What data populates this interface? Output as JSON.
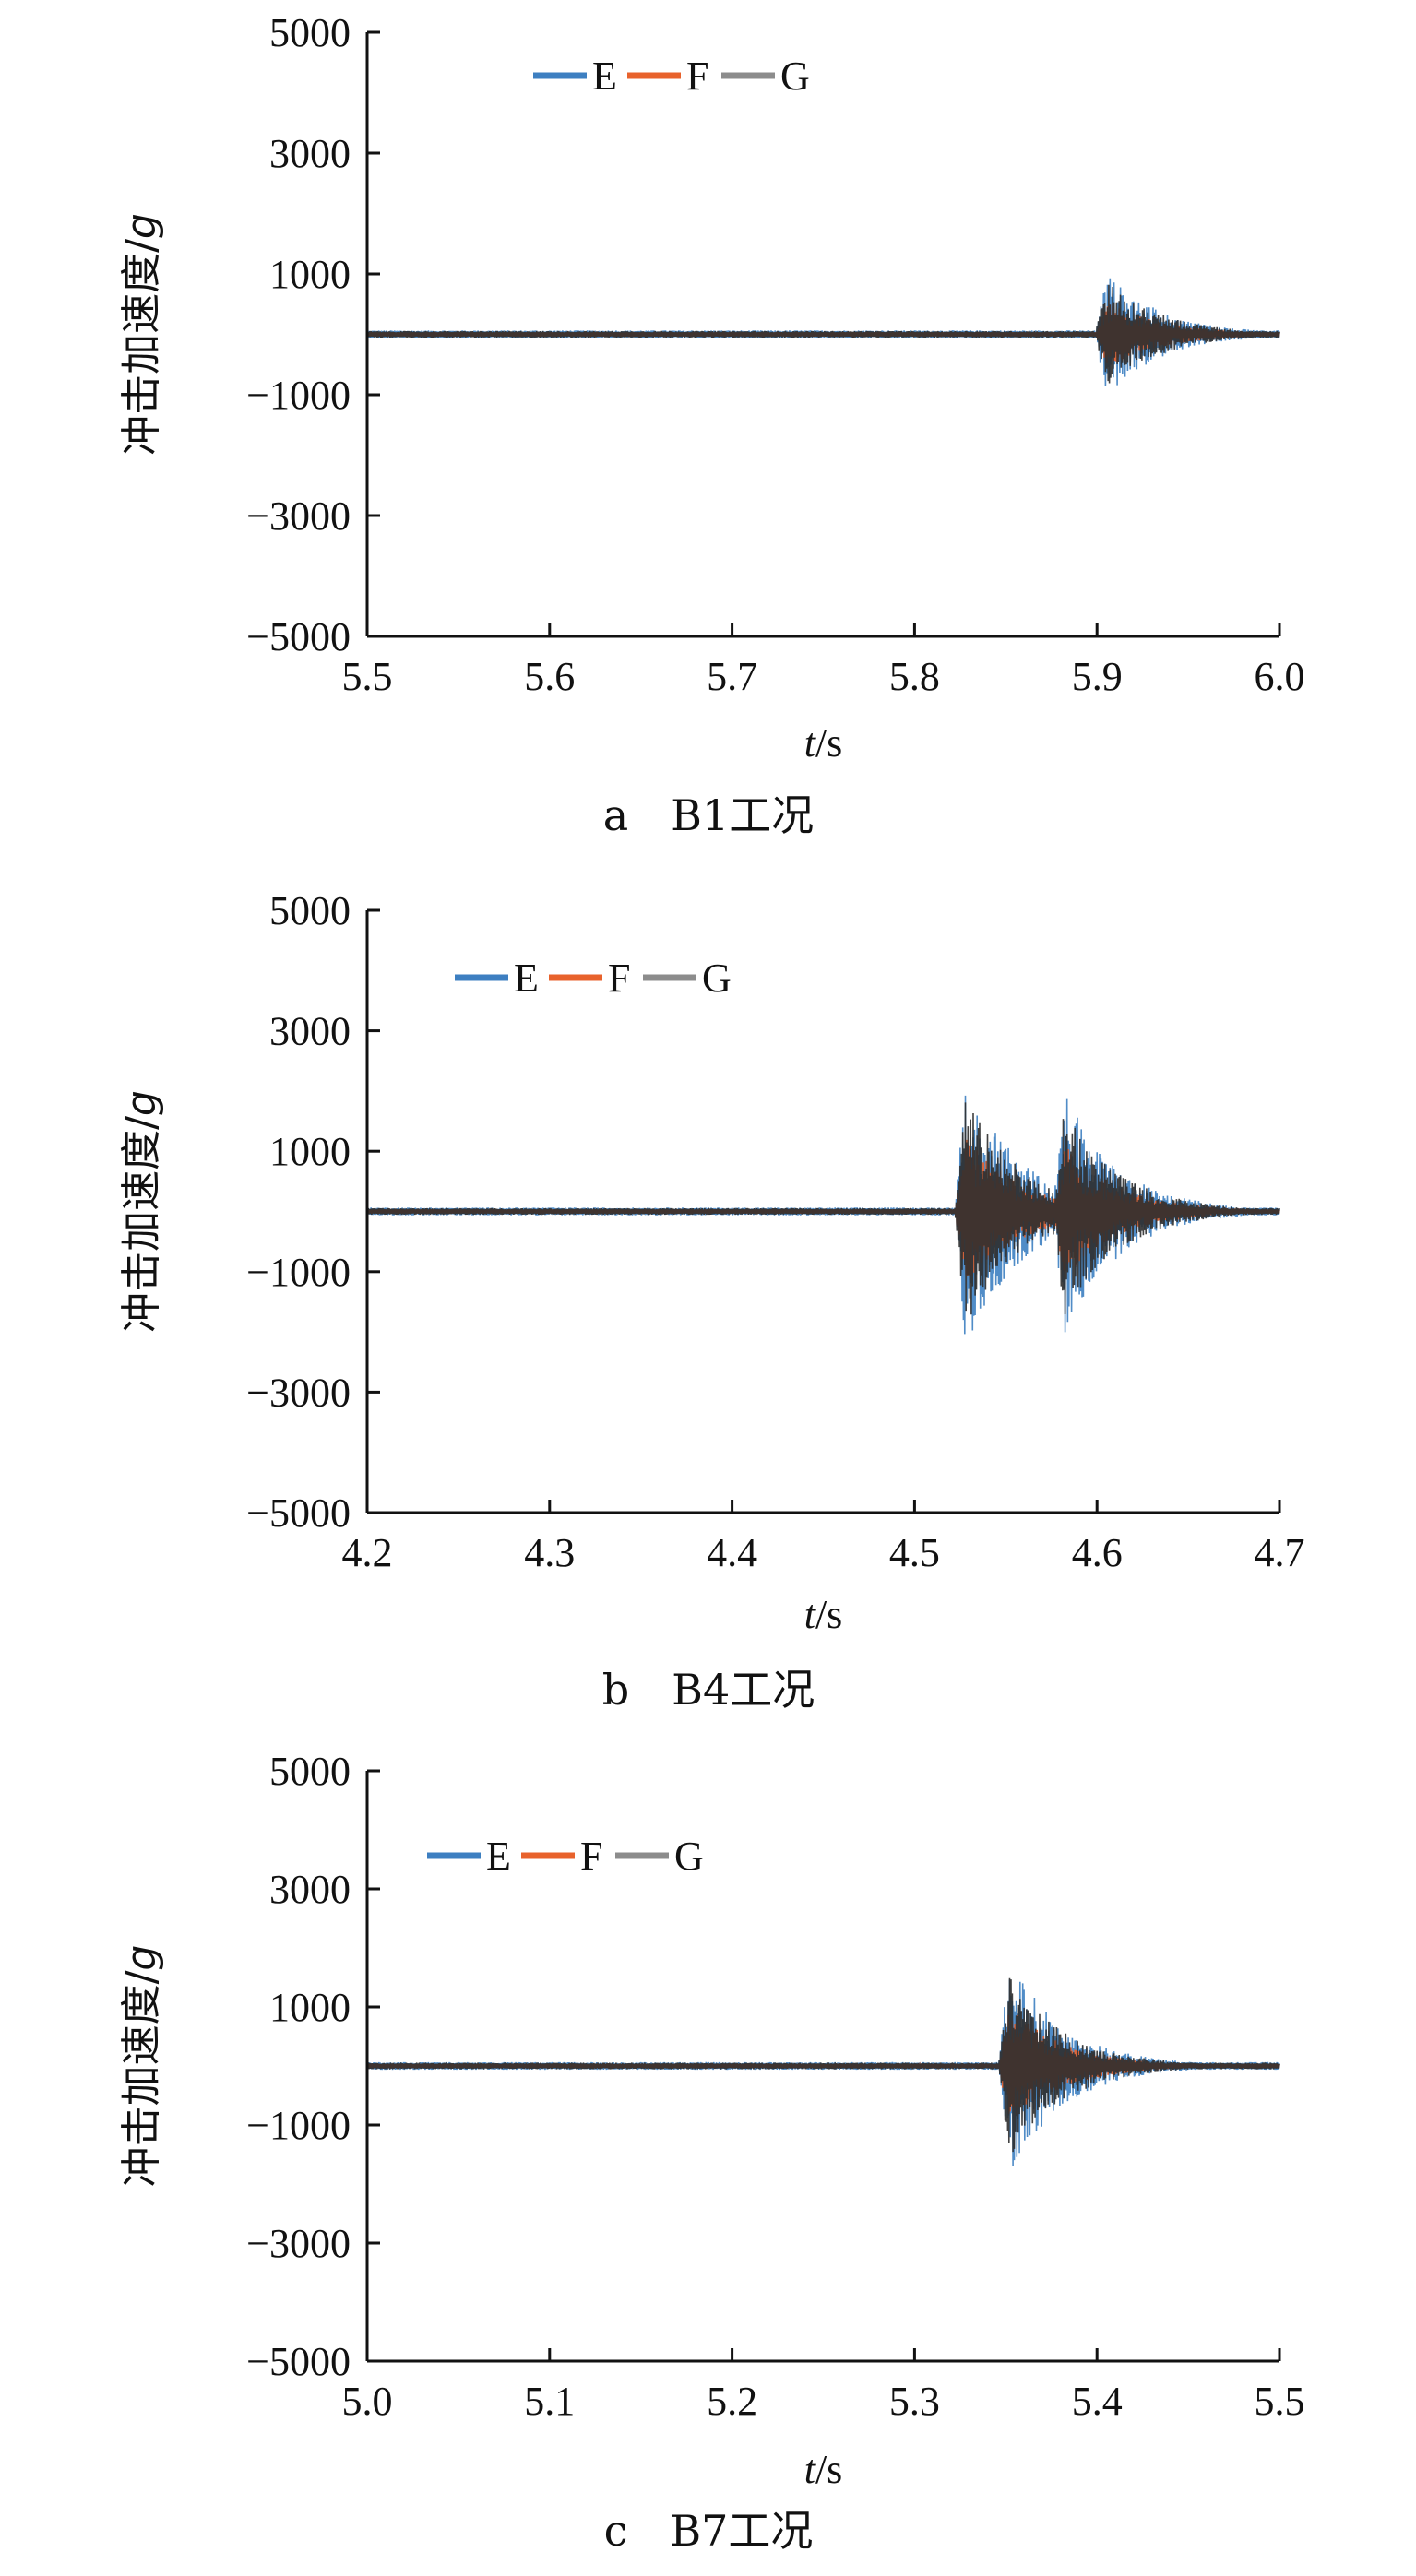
{
  "chart_data": [
    {
      "type": "line",
      "caption": "a　B1工况",
      "xlabel_italic": "t",
      "xlabel_unit": "/s",
      "ylabel_text": "冲击加速度/",
      "ylabel_italic": "g",
      "xlim": [
        5.5,
        6.0
      ],
      "ylim": [
        -5000,
        5000
      ],
      "x_ticks": [
        "5.5",
        "5.6",
        "5.7",
        "5.8",
        "5.9",
        "6.0"
      ],
      "y_ticks": [
        "5000",
        "3000",
        "1000",
        "−1000",
        "−3000",
        "−5000"
      ],
      "grid": false,
      "legend_position": "top-left",
      "series": [
        {
          "name": "E",
          "color": "#3d7fc1"
        },
        {
          "name": "F",
          "color": "#e8622c"
        },
        {
          "name": "G",
          "color": "#8c8c8c"
        }
      ],
      "signal": {
        "baseline": 0,
        "burst_start": 5.895,
        "end": 6.0,
        "peaks": [
          {
            "x": 5.905,
            "max": 1100,
            "min": -1000
          }
        ]
      }
    },
    {
      "type": "line",
      "caption": "b　B4工况",
      "xlabel_italic": "t",
      "xlabel_unit": "/s",
      "ylabel_text": "冲击加速度/",
      "ylabel_italic": "g",
      "xlim": [
        4.2,
        4.7
      ],
      "ylim": [
        -5000,
        5000
      ],
      "x_ticks": [
        "4.2",
        "4.3",
        "4.4",
        "4.5",
        "4.6",
        "4.7"
      ],
      "y_ticks": [
        "5000",
        "3000",
        "1000",
        "−1000",
        "−3000",
        "−5000"
      ],
      "grid": false,
      "legend_position": "top-left",
      "series": [
        {
          "name": "E",
          "color": "#3d7fc1"
        },
        {
          "name": "F",
          "color": "#e8622c"
        },
        {
          "name": "G",
          "color": "#8c8c8c"
        }
      ],
      "signal": {
        "baseline": 0,
        "burst_start": 4.522,
        "end": 4.7,
        "peaks": [
          {
            "x": 4.528,
            "max": 2400,
            "min": -2200
          },
          {
            "x": 4.582,
            "max": 2200,
            "min": -1900
          }
        ]
      }
    },
    {
      "type": "line",
      "caption": "c　B7工况",
      "xlabel_italic": "t",
      "xlabel_unit": "/s",
      "ylabel_text": "冲击加速度/",
      "ylabel_italic": "g",
      "xlim": [
        5.0,
        5.5
      ],
      "ylim": [
        -5000,
        5000
      ],
      "x_ticks": [
        "5.0",
        "5.1",
        "5.2",
        "5.3",
        "5.4",
        "5.5"
      ],
      "y_ticks": [
        "5000",
        "3000",
        "1000",
        "−1000",
        "−3000",
        "−5000"
      ],
      "grid": false,
      "legend_position": "top-left",
      "series": [
        {
          "name": "E",
          "color": "#3d7fc1"
        },
        {
          "name": "F",
          "color": "#e8622c"
        },
        {
          "name": "G",
          "color": "#8c8c8c"
        }
      ],
      "signal": {
        "baseline": 0,
        "burst_start": 5.345,
        "end": 5.5,
        "peaks": [
          {
            "x": 5.352,
            "max": 1500,
            "min": -2200
          }
        ]
      }
    }
  ]
}
